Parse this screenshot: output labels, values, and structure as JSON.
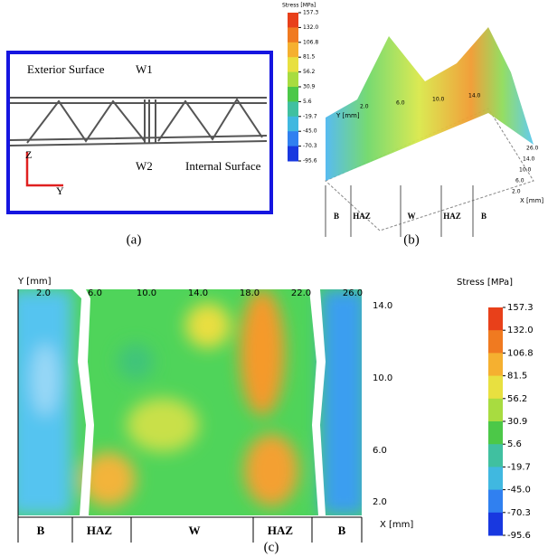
{
  "panel_a": {
    "exterior": "Exterior Surface",
    "w1": "W1",
    "w2": "W2",
    "internal": "Internal Surface",
    "z": "Z",
    "y": "Y",
    "caption": "(a)"
  },
  "panel_b": {
    "colorbar_title": "Stress [MPa]",
    "colorbar_ticks": [
      "157.3",
      "132.0",
      "106.8",
      "81.5",
      "56.2",
      "30.9",
      "5.6",
      "-19.7",
      "-45.0",
      "-70.3",
      "-95.6"
    ],
    "y_axis": "Y [mm]",
    "y_ticks": [
      "2.0",
      "6.0",
      "10.0",
      "14.0"
    ],
    "x_axis": "X [mm]",
    "x_ticks": [
      "26.0",
      "14.0",
      "10.0",
      "6.0",
      "2.0"
    ],
    "zones": [
      "B",
      "HAZ",
      "W",
      "HAZ",
      "B"
    ],
    "caption": "(b)"
  },
  "panel_c": {
    "y_axis": "Y [mm]",
    "top_ticks": [
      "2.0",
      "6.0",
      "10.0",
      "14.0",
      "18.0",
      "22.0",
      "26.0"
    ],
    "right_ticks": [
      "14.0",
      "10.0",
      "6.0",
      "2.0"
    ],
    "x_axis": "X [mm]",
    "zones": [
      "B",
      "HAZ",
      "W",
      "HAZ",
      "B"
    ],
    "colorbar_title": "Stress [MPa]",
    "colorbar_ticks": [
      "157.3",
      "132.0",
      "106.8",
      "81.5",
      "56.2",
      "30.9",
      "5.6",
      "-19.7",
      "-45.0",
      "-70.3",
      "-95.6"
    ],
    "caption": "(c)"
  }
}
